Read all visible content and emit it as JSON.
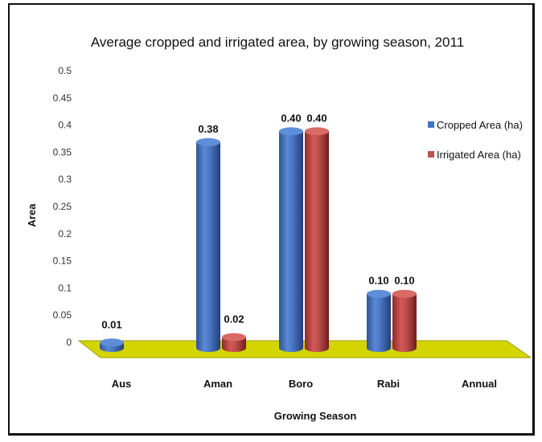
{
  "chart_data": {
    "type": "bar",
    "title": "Average cropped and irrigated area, by growing season, 2011",
    "xlabel": "Growing Season",
    "ylabel": "Area",
    "categories": [
      "Aus",
      "Aman",
      "Boro",
      "Rabi",
      "Annual"
    ],
    "ylim": [
      0,
      0.5
    ],
    "yticks": [
      "0",
      "0.05",
      "0.1",
      "0.15",
      "0.2",
      "0.25",
      "0.3",
      "0.35",
      "0.4",
      "0.45",
      "0.5"
    ],
    "series": [
      {
        "name": "Cropped Area (ha)",
        "color": "#4472C4",
        "values": [
          0.01,
          0.38,
          0.4,
          0.1,
          null
        ],
        "labels": [
          "0.01",
          "0.38",
          "0.40",
          "0.10",
          ""
        ]
      },
      {
        "name": "Irrigated Area (ha)",
        "color": "#C0504D",
        "values": [
          null,
          0.02,
          0.4,
          0.1,
          null
        ],
        "labels": [
          "",
          "0.02",
          "0.40",
          "0.10",
          ""
        ]
      }
    ],
    "floor_color": "#D4D400",
    "legend_position": "right",
    "grid": false,
    "style": "3d-cylinder"
  }
}
